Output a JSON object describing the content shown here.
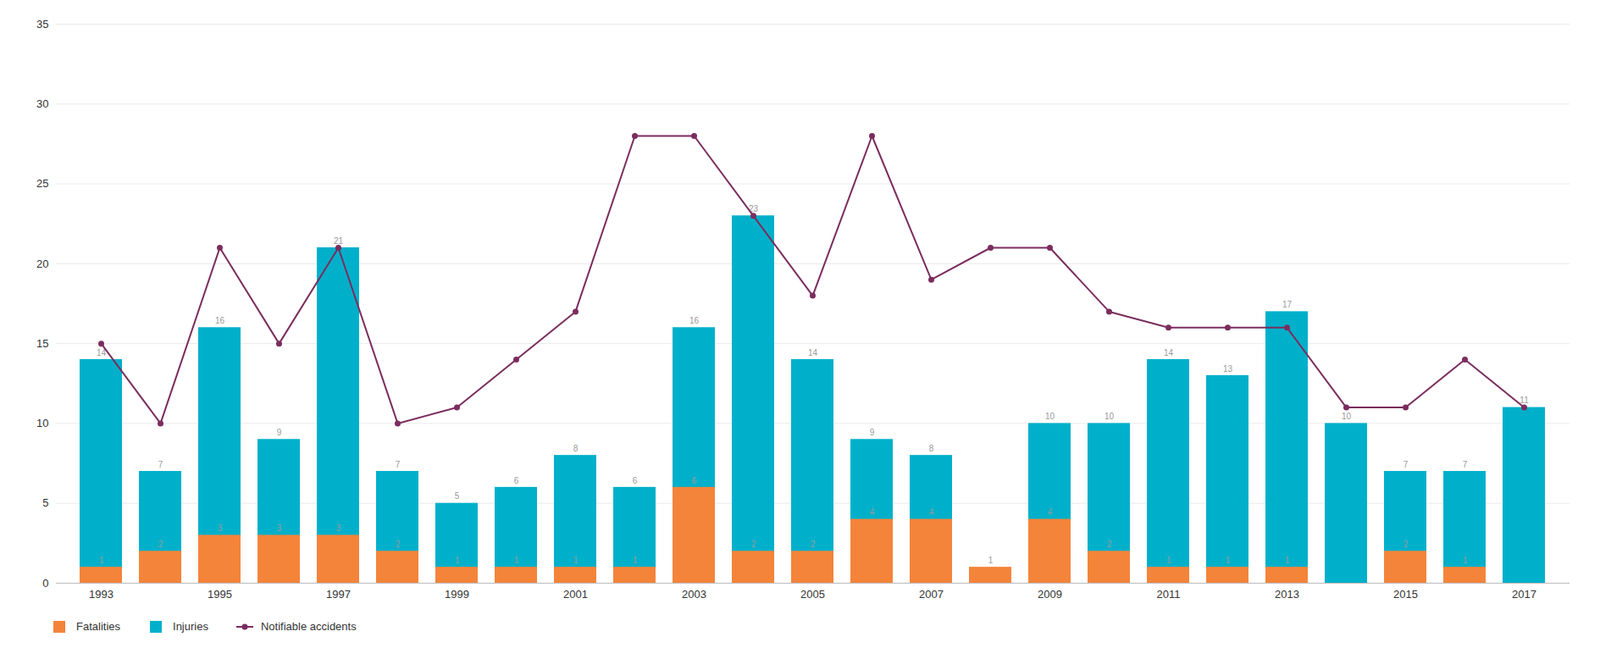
{
  "chart_data": {
    "type": "bar",
    "categories": [
      "1993",
      null,
      "1995",
      null,
      "1997",
      null,
      "1999",
      null,
      "2001",
      null,
      "2003",
      null,
      "2005",
      null,
      "2007",
      null,
      "2009",
      null,
      "2011",
      null,
      "2013",
      null,
      "2015",
      null,
      "2017"
    ],
    "series": [
      {
        "name": "Fatalities",
        "type": "bar",
        "color": "#f4843a",
        "data_labels": true,
        "values": [
          1,
          2,
          3,
          3,
          3,
          2,
          1,
          1,
          1,
          1,
          6,
          2,
          2,
          4,
          4,
          1,
          4,
          2,
          1,
          1,
          1,
          0,
          2,
          1,
          0
        ],
        "value_labels": [
          "1",
          "2",
          "3",
          "3",
          "3",
          "2",
          "1",
          "1",
          "1",
          "1",
          "6",
          "2",
          "2",
          "4",
          "4",
          "1",
          "4",
          "2",
          "1",
          "1",
          "1",
          null,
          "2",
          "1",
          null
        ]
      },
      {
        "name": "Injuries",
        "type": "bar",
        "color": "#00b0ca",
        "data_labels": true,
        "values": [
          14,
          7,
          16,
          9,
          21,
          7,
          5,
          6,
          8,
          6,
          16,
          23,
          14,
          9,
          8,
          0,
          10,
          10,
          14,
          13,
          17,
          10,
          7,
          7,
          11
        ],
        "value_labels": [
          "14",
          "7",
          "16",
          "9",
          "21",
          "7",
          "5",
          "6",
          "8",
          "6",
          "16",
          "23",
          "14",
          "9",
          "8",
          null,
          "10",
          "10",
          "14",
          "13",
          "17",
          "10",
          "7",
          "7",
          "11"
        ]
      },
      {
        "name": "Notifiable accidents",
        "type": "line",
        "color": "#7b2d5e",
        "marker": "circle",
        "line_style": "solid",
        "data_labels": false,
        "values": [
          15,
          10,
          21,
          15,
          21,
          10,
          11,
          14,
          17,
          28,
          28,
          23,
          18,
          28,
          19,
          21,
          21,
          17,
          16,
          16,
          16,
          11,
          11,
          14,
          11
        ]
      }
    ],
    "stacked": false,
    "ylim": [
      0,
      35
    ],
    "yticks": [
      0,
      5,
      10,
      15,
      20,
      25,
      30,
      35
    ],
    "grid": true,
    "legend": "lower left"
  }
}
